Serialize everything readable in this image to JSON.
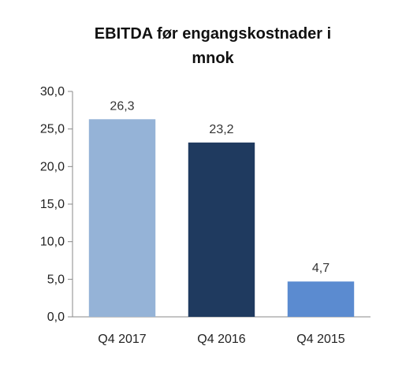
{
  "chart_data": {
    "type": "bar",
    "title_line1": "EBITDA før engangskostnader i",
    "title_line2": "mnok",
    "categories": [
      "Q4 2017",
      "Q4 2016",
      "Q4 2015"
    ],
    "values": [
      26.3,
      23.2,
      4.7
    ],
    "value_labels": [
      "26,3",
      "23,2",
      "4,7"
    ],
    "colors": [
      "#95b3d7",
      "#1f3a5f",
      "#5b8bd0"
    ],
    "yticks": [
      "0,0",
      "5,0",
      "10,0",
      "15,0",
      "20,0",
      "25,0",
      "30,0"
    ],
    "ylim": [
      0,
      30
    ],
    "grid": false,
    "legend": "none"
  }
}
